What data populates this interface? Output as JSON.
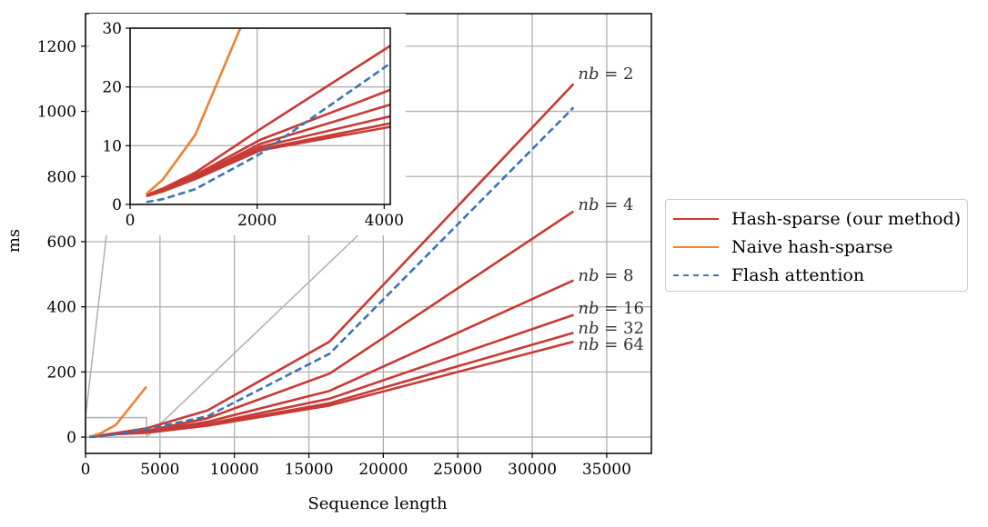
{
  "chart_data": [
    {
      "type": "line",
      "title": "",
      "xlabel": "Sequence length",
      "ylabel": "ms",
      "xlim": [
        0,
        38000
      ],
      "ylim": [
        -50,
        1300
      ],
      "xticks": [
        0,
        5000,
        10000,
        15000,
        20000,
        25000,
        30000,
        35000
      ],
      "yticks": [
        0,
        200,
        400,
        600,
        800,
        1000,
        1200
      ],
      "grid": true,
      "legend_position": "right",
      "x": [
        256,
        512,
        1024,
        2048,
        4096,
        8192,
        16384,
        32768
      ],
      "series": [
        {
          "name": "Hash-sparse (our method)",
          "annotation": "nb = 2",
          "color": "#c83a35",
          "style": "solid",
          "values": [
            1.6,
            2.7,
            5.4,
            12.8,
            27.0,
            82,
            293,
            1084
          ]
        },
        {
          "name": "Hash-sparse (our method)",
          "annotation": "nb = 4",
          "color": "#c83a35",
          "style": "solid",
          "values": [
            1.5,
            2.5,
            5.0,
            11.0,
            19.5,
            58,
            195,
            693
          ]
        },
        {
          "name": "Hash-sparse (our method)",
          "annotation": "nb = 8",
          "color": "#c83a35",
          "style": "solid",
          "values": [
            1.5,
            2.4,
            4.7,
            10.3,
            17.0,
            47,
            142,
            481
          ]
        },
        {
          "name": "Hash-sparse (our method)",
          "annotation": "nb = 16",
          "color": "#c83a35",
          "style": "solid",
          "values": [
            1.4,
            2.3,
            4.5,
            9.8,
            15.0,
            40,
            118,
            375
          ]
        },
        {
          "name": "Hash-sparse (our method)",
          "annotation": "nb = 32",
          "color": "#c83a35",
          "style": "solid",
          "values": [
            1.4,
            2.3,
            4.4,
            9.4,
            13.8,
            37,
            104,
            320
          ]
        },
        {
          "name": "Hash-sparse (our method)",
          "annotation": "nb = 64",
          "color": "#c83a35",
          "style": "solid",
          "values": [
            1.4,
            2.2,
            4.3,
            9.2,
            13.2,
            35,
            97,
            293
          ]
        },
        {
          "name": "Naive hash-sparse",
          "color": "#ee8232",
          "style": "solid",
          "x": [
            256,
            512,
            1024,
            2048,
            4096
          ],
          "values": [
            1.8,
            4.2,
            11.8,
            38,
            155
          ]
        },
        {
          "name": "Flash attention",
          "color": "#3e74b0",
          "style": "dashed",
          "values": [
            0.4,
            0.9,
            2.6,
            8.6,
            24.0,
            64,
            256,
            1012
          ]
        }
      ],
      "zoom_rect": {
        "x": [
          0,
          4096
        ],
        "y": [
          0,
          60
        ]
      }
    },
    {
      "type": "line",
      "role": "inset",
      "xlim": [
        0,
        4096
      ],
      "ylim": [
        0,
        30
      ],
      "xticks": [
        0,
        2000,
        4000
      ],
      "yticks": [
        0,
        10,
        20,
        30
      ],
      "grid": true
    }
  ],
  "legend": {
    "items": [
      {
        "label": "Hash-sparse (our method)",
        "color": "#c83a35",
        "style": "solid"
      },
      {
        "label": "Naive hash-sparse",
        "color": "#ee8232",
        "style": "solid"
      },
      {
        "label": "Flash attention",
        "color": "#3e74b0",
        "style": "dashed"
      }
    ]
  }
}
